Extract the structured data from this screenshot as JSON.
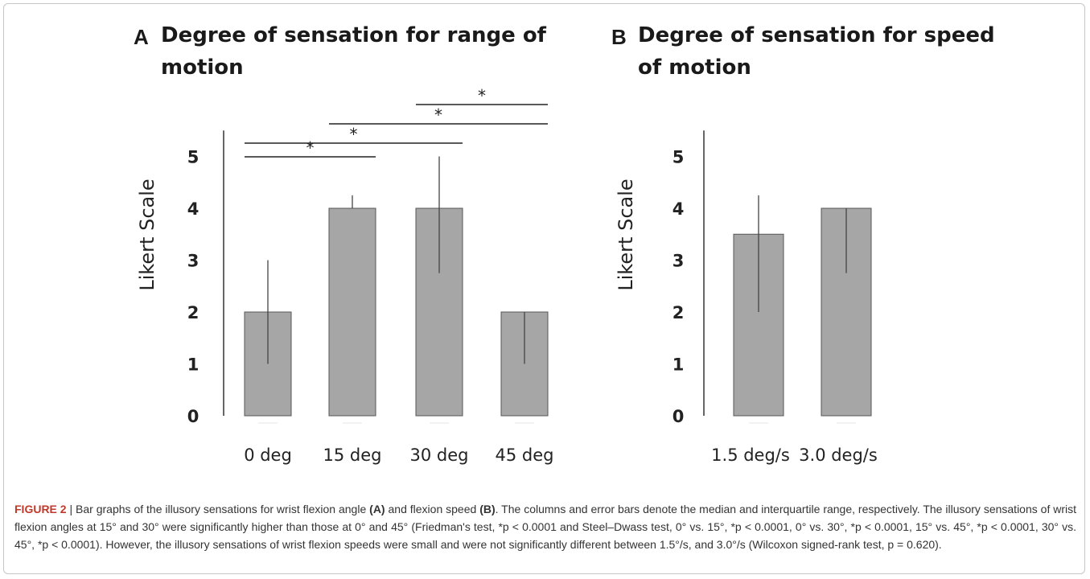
{
  "panels": [
    {
      "letter": "A",
      "title_line1": "Degree of sensation for range of",
      "title_line2": "motion"
    },
    {
      "letter": "B",
      "title_line1": "Degree of sensation for speed",
      "title_line2": "of motion"
    }
  ],
  "chart_data": [
    {
      "type": "bar",
      "title": "Degree of sensation for range of motion",
      "ylabel": "Likert Scale",
      "xlabel": "",
      "categories": [
        "0 deg",
        "15 deg",
        "30 deg",
        "45 deg"
      ],
      "values": [
        2,
        4,
        4,
        2
      ],
      "error_low": [
        1,
        4,
        2.75,
        1
      ],
      "error_high": [
        3,
        4.25,
        5,
        2
      ],
      "ylim": [
        0,
        5.5
      ],
      "yticks": [
        0,
        1,
        2,
        3,
        4,
        5
      ],
      "bar_color": "#a6a6a6",
      "significance": [
        {
          "from": "0 deg",
          "to": "15 deg",
          "label": "*"
        },
        {
          "from": "0 deg",
          "to": "30 deg",
          "label": "*"
        },
        {
          "from": "15 deg",
          "to": "45 deg",
          "label": "*"
        },
        {
          "from": "30 deg",
          "to": "45 deg",
          "label": "*"
        }
      ]
    },
    {
      "type": "bar",
      "title": "Degree of sensation for speed of motion",
      "ylabel": "Likert Scale",
      "xlabel": "",
      "categories": [
        "1.5 deg/s",
        "3.0 deg/s"
      ],
      "values": [
        3.5,
        4
      ],
      "error_low": [
        2,
        2.75
      ],
      "error_high": [
        4.25,
        4
      ],
      "ylim": [
        0,
        5.5
      ],
      "yticks": [
        0,
        1,
        2,
        3,
        4,
        5
      ],
      "bar_color": "#a6a6a6"
    }
  ],
  "caption": {
    "label": "FIGURE 2",
    "separator": " | ",
    "text_1": "Bar graphs of the illusory sensations for wrist flexion angle ",
    "bold_a": "(A)",
    "text_2": " and flexion speed ",
    "bold_b": "(B)",
    "text_3": ". The columns and error bars denote the median and interquartile range, respectively. The illusory sensations of wrist flexion angles at 15° and 30° were significantly higher than those at 0° and 45° (Friedman's test, *p < 0.0001 and Steel–Dwass test, 0° vs. 15°, *p < 0.0001, 0° vs. 30°, *p < 0.0001, 15° vs. 45°, *p < 0.0001, 30° vs. 45°, *p < 0.0001). However, the illusory sensations of wrist flexion speeds were small and were not significantly different between 1.5°/s, and 3.0°/s (Wilcoxon signed-rank test, p = 0.620)."
  }
}
